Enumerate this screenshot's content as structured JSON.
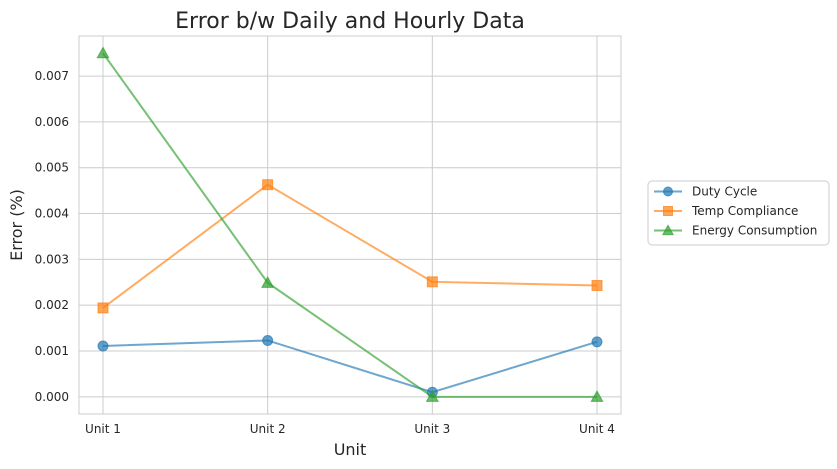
{
  "chart_data": {
    "type": "line",
    "title": "Error b/w Daily and Hourly Data",
    "xlabel": "Unit",
    "ylabel": "Error (%)",
    "categories": [
      "Unit 1",
      "Unit 2",
      "Unit 3",
      "Unit 4"
    ],
    "ylim": [
      -0.000375,
      0.007875
    ],
    "yticks": [
      0.0,
      0.001,
      0.002,
      0.003,
      0.004,
      0.005,
      0.006,
      0.007
    ],
    "ytick_labels": [
      "0.000",
      "0.001",
      "0.002",
      "0.003",
      "0.004",
      "0.005",
      "0.006",
      "0.007"
    ],
    "grid": true,
    "legend_position": "right, outside plot",
    "series": [
      {
        "name": "Duty Cycle",
        "color": "#1f77b4",
        "marker": "circle",
        "values": [
          0.00111,
          0.00123,
          0.0001,
          0.0012
        ]
      },
      {
        "name": "Temp Compliance",
        "color": "#ff7f0e",
        "marker": "square",
        "values": [
          0.00194,
          0.00463,
          0.00251,
          0.00243
        ]
      },
      {
        "name": "Energy Consumption",
        "color": "#2ca02c",
        "marker": "triangle",
        "values": [
          0.0075,
          0.00249,
          0.0,
          0.0
        ]
      }
    ]
  }
}
